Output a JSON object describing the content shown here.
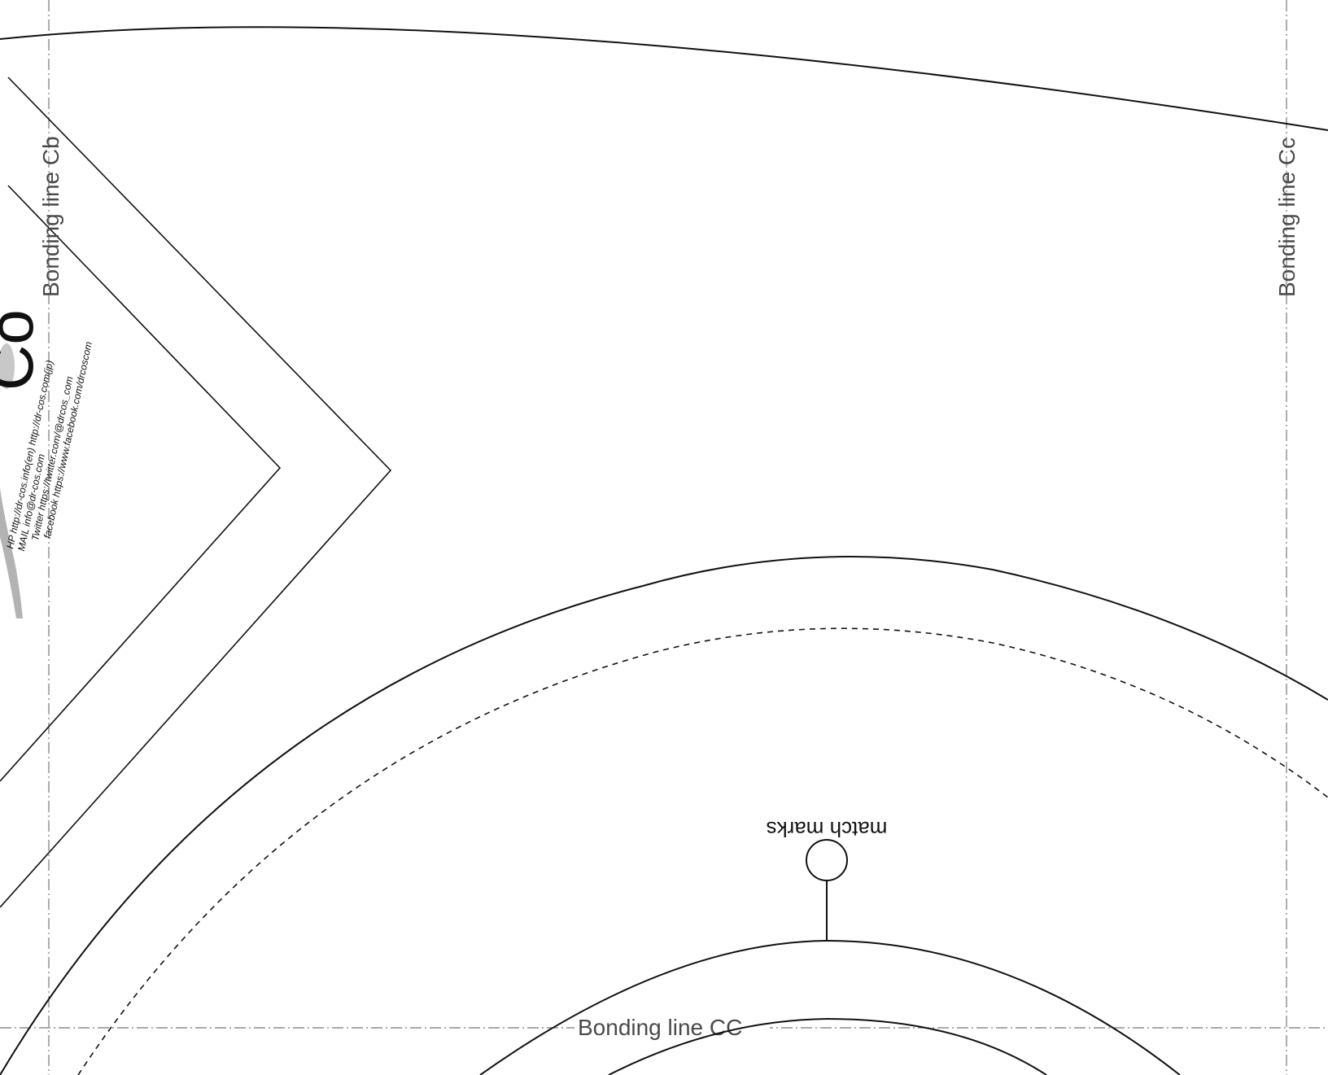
{
  "pattern": {
    "bonding_lines": {
      "vertical_left": "Bonding line Cb",
      "vertical_right": "Bonding line Cc",
      "horizontal_bottom": "Bonding line CC"
    },
    "match_marks_label": "match marks",
    "logo_text": "Co",
    "contact_lines": [
      "HP http://dr-cos.info(en)  http://dr-cos.com(jp)",
      "MAIL info@dr-cos.com",
      "Twitter https://twitter.com/@drcos_com",
      "facebook https://www.facebook.com/drcoscom"
    ],
    "colors": {
      "outline": "#111111",
      "bonding_line": "#777777",
      "label": "#4a4a4a",
      "logo_gray": "#b3b3b3"
    }
  }
}
